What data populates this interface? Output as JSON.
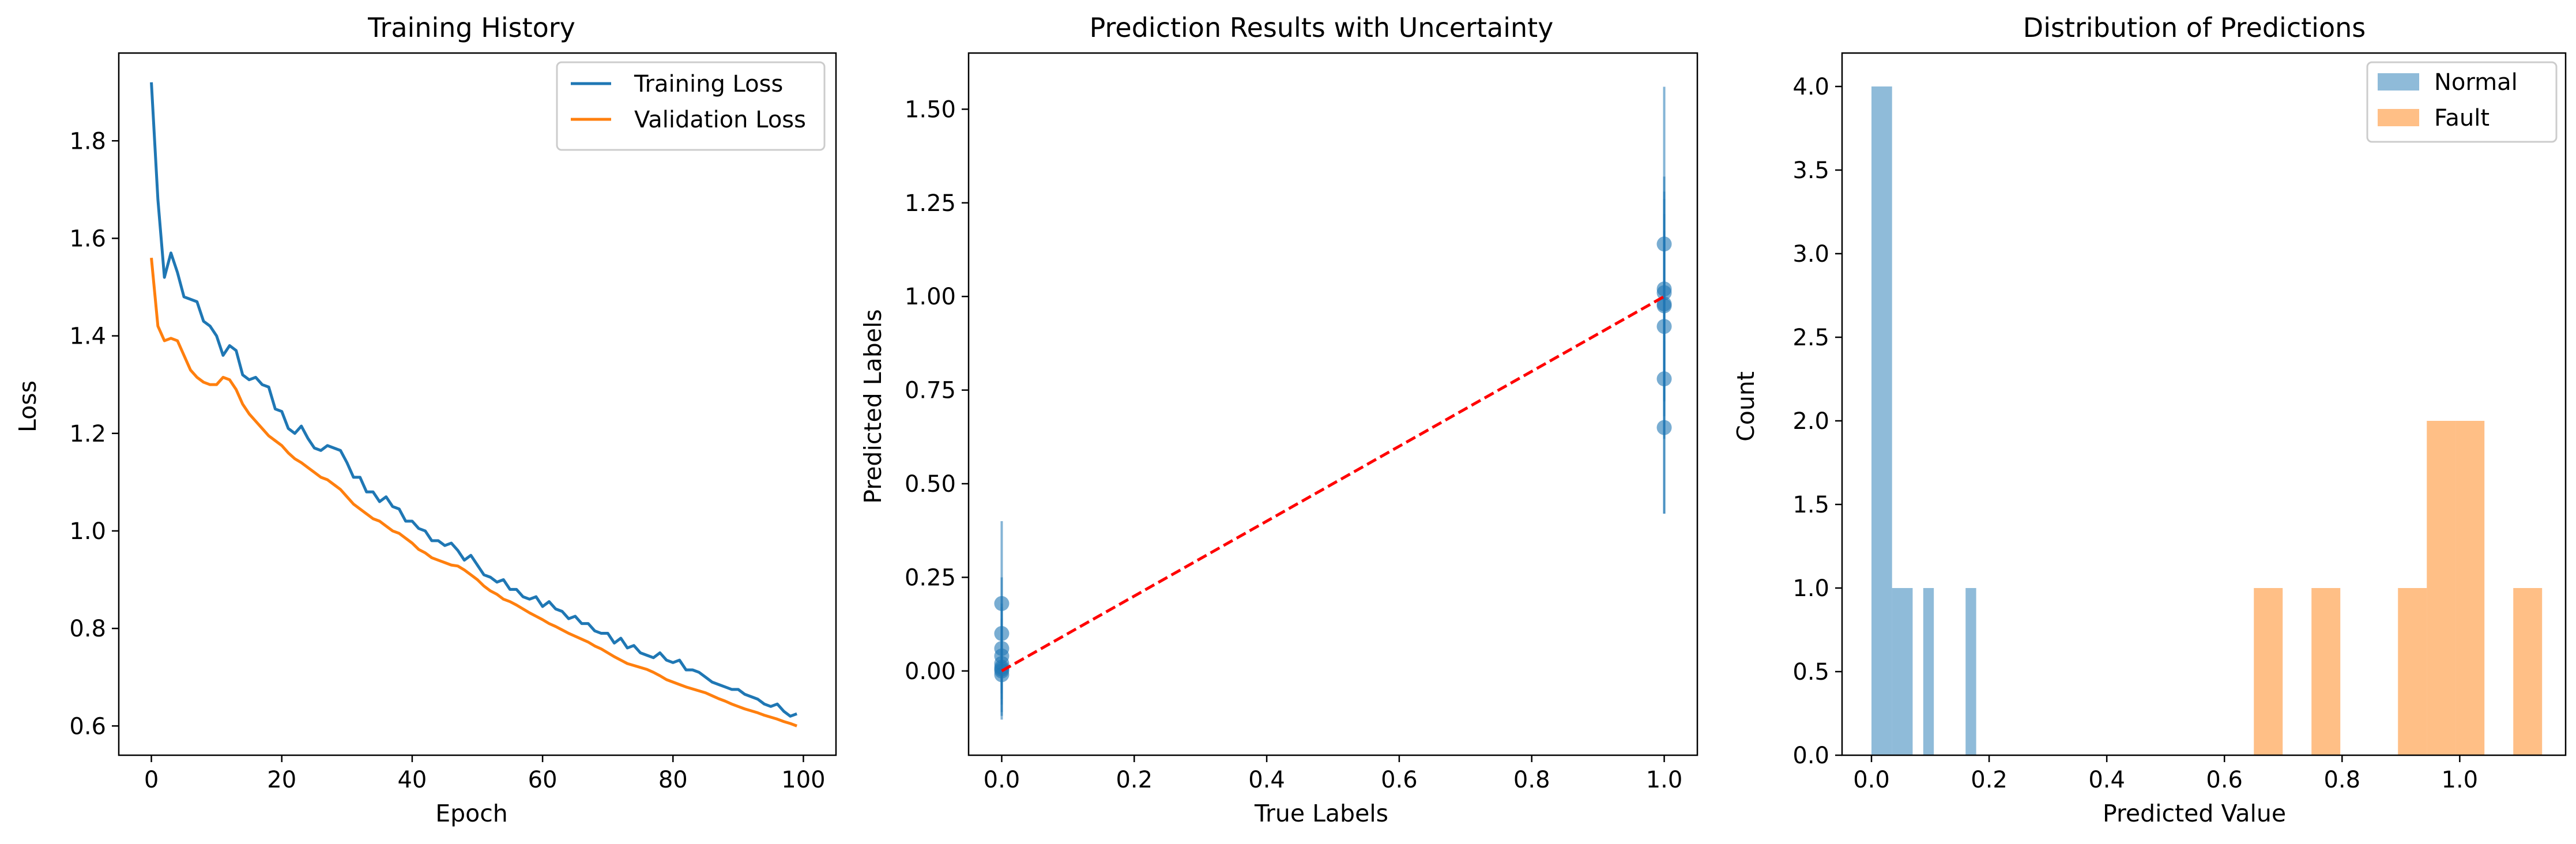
{
  "colors": {
    "training": "#1f77b4",
    "validation": "#ff7f0e",
    "scatter": "#1f77b4",
    "reference_line": "#ff0000",
    "hist_normal": "#1f77b4",
    "hist_fault": "#ff7f0e"
  },
  "chart_data": [
    {
      "type": "line",
      "title": "Training History",
      "xlabel": "Epoch",
      "ylabel": "Loss",
      "xlim": [
        -5,
        105
      ],
      "ylim": [
        0.54,
        1.98
      ],
      "xticks": [
        0,
        20,
        40,
        60,
        80,
        100
      ],
      "yticks": [
        0.6,
        0.8,
        1.0,
        1.2,
        1.4,
        1.6,
        1.8
      ],
      "xtick_labels": [
        "0",
        "20",
        "40",
        "60",
        "80",
        "100"
      ],
      "ytick_labels": [
        "0.6",
        "0.8",
        "1.0",
        "1.2",
        "1.4",
        "1.6",
        "1.8"
      ],
      "grid": false,
      "legend": "upper right",
      "legend_labels": [
        "Training Loss",
        "Validation Loss"
      ],
      "series": [
        {
          "name": "Training Loss",
          "color": "#1f77b4",
          "x": [
            0,
            1,
            2,
            3,
            4,
            5,
            6,
            7,
            8,
            9,
            10,
            11,
            12,
            13,
            14,
            15,
            16,
            17,
            18,
            19,
            20,
            21,
            22,
            23,
            24,
            25,
            26,
            27,
            28,
            29,
            30,
            31,
            32,
            33,
            34,
            35,
            36,
            37,
            38,
            39,
            40,
            41,
            42,
            43,
            44,
            45,
            46,
            47,
            48,
            49,
            50,
            51,
            52,
            53,
            54,
            55,
            56,
            57,
            58,
            59,
            60,
            61,
            62,
            63,
            64,
            65,
            66,
            67,
            68,
            69,
            70,
            71,
            72,
            73,
            74,
            75,
            76,
            77,
            78,
            79,
            80,
            81,
            82,
            83,
            84,
            85,
            86,
            87,
            88,
            89,
            90,
            91,
            92,
            93,
            94,
            95,
            96,
            97,
            98,
            99
          ],
          "values": [
            1.92,
            1.68,
            1.52,
            1.57,
            1.53,
            1.48,
            1.475,
            1.47,
            1.43,
            1.42,
            1.4,
            1.36,
            1.38,
            1.37,
            1.32,
            1.31,
            1.315,
            1.3,
            1.295,
            1.25,
            1.245,
            1.21,
            1.2,
            1.215,
            1.19,
            1.17,
            1.165,
            1.175,
            1.17,
            1.165,
            1.14,
            1.11,
            1.11,
            1.08,
            1.08,
            1.06,
            1.07,
            1.05,
            1.045,
            1.02,
            1.02,
            1.005,
            1.0,
            0.98,
            0.98,
            0.97,
            0.975,
            0.96,
            0.94,
            0.95,
            0.93,
            0.91,
            0.905,
            0.895,
            0.9,
            0.88,
            0.88,
            0.865,
            0.86,
            0.865,
            0.845,
            0.855,
            0.84,
            0.835,
            0.82,
            0.825,
            0.81,
            0.81,
            0.795,
            0.79,
            0.79,
            0.77,
            0.78,
            0.76,
            0.765,
            0.75,
            0.745,
            0.74,
            0.75,
            0.735,
            0.73,
            0.735,
            0.715,
            0.715,
            0.71,
            0.7,
            0.69,
            0.685,
            0.68,
            0.675,
            0.675,
            0.665,
            0.66,
            0.655,
            0.645,
            0.64,
            0.645,
            0.63,
            0.62,
            0.625
          ]
        },
        {
          "name": "Validation Loss",
          "color": "#ff7f0e",
          "x": [
            0,
            1,
            2,
            3,
            4,
            5,
            6,
            7,
            8,
            9,
            10,
            11,
            12,
            13,
            14,
            15,
            16,
            17,
            18,
            19,
            20,
            21,
            22,
            23,
            24,
            25,
            26,
            27,
            28,
            29,
            30,
            31,
            32,
            33,
            34,
            35,
            36,
            37,
            38,
            39,
            40,
            41,
            42,
            43,
            44,
            45,
            46,
            47,
            48,
            49,
            50,
            51,
            52,
            53,
            54,
            55,
            56,
            57,
            58,
            59,
            60,
            61,
            62,
            63,
            64,
            65,
            66,
            67,
            68,
            69,
            70,
            71,
            72,
            73,
            74,
            75,
            76,
            77,
            78,
            79,
            80,
            81,
            82,
            83,
            84,
            85,
            86,
            87,
            88,
            89,
            90,
            91,
            92,
            93,
            94,
            95,
            96,
            97,
            98,
            99
          ],
          "values": [
            1.56,
            1.42,
            1.39,
            1.395,
            1.39,
            1.36,
            1.33,
            1.315,
            1.305,
            1.3,
            1.3,
            1.315,
            1.31,
            1.29,
            1.26,
            1.24,
            1.225,
            1.21,
            1.195,
            1.185,
            1.175,
            1.16,
            1.148,
            1.14,
            1.13,
            1.12,
            1.11,
            1.105,
            1.095,
            1.085,
            1.07,
            1.055,
            1.045,
            1.035,
            1.025,
            1.02,
            1.01,
            1.0,
            0.995,
            0.985,
            0.975,
            0.962,
            0.955,
            0.945,
            0.94,
            0.935,
            0.93,
            0.928,
            0.92,
            0.91,
            0.9,
            0.887,
            0.877,
            0.87,
            0.86,
            0.855,
            0.848,
            0.84,
            0.832,
            0.825,
            0.818,
            0.81,
            0.804,
            0.797,
            0.79,
            0.784,
            0.778,
            0.772,
            0.764,
            0.758,
            0.75,
            0.742,
            0.735,
            0.728,
            0.724,
            0.72,
            0.716,
            0.71,
            0.703,
            0.695,
            0.69,
            0.685,
            0.68,
            0.676,
            0.672,
            0.668,
            0.662,
            0.656,
            0.651,
            0.645,
            0.64,
            0.635,
            0.631,
            0.627,
            0.622,
            0.618,
            0.614,
            0.609,
            0.605,
            0.6
          ]
        }
      ]
    },
    {
      "type": "scatter",
      "title": "Prediction Results with Uncertainty",
      "xlabel": "True Labels",
      "ylabel": "Predicted Labels",
      "xlim": [
        -0.05,
        1.05
      ],
      "ylim": [
        -0.225,
        1.65
      ],
      "xticks": [
        0,
        0.2,
        0.4,
        0.6,
        0.8,
        1.0
      ],
      "yticks": [
        0,
        0.25,
        0.5,
        0.75,
        1.0,
        1.25,
        1.5
      ],
      "xtick_labels": [
        "0.0",
        "0.2",
        "0.4",
        "0.6",
        "0.8",
        "1.0"
      ],
      "ytick_labels": [
        "0.00",
        "0.25",
        "0.50",
        "0.75",
        "1.00",
        "1.25",
        "1.50"
      ],
      "grid": false,
      "points": [
        {
          "x": 0,
          "y": 0.18,
          "err": 0.22
        },
        {
          "x": 0,
          "y": 0.1,
          "err": 0.15
        },
        {
          "x": 0,
          "y": 0.06,
          "err": 0.12
        },
        {
          "x": 0,
          "y": 0.04,
          "err": 0.1
        },
        {
          "x": 0,
          "y": 0.02,
          "err": 0.15
        },
        {
          "x": 0,
          "y": 0.01,
          "err": 0.1
        },
        {
          "x": 0,
          "y": 0.005,
          "err": 0.08
        },
        {
          "x": 0,
          "y": 0.0,
          "err": 0.12
        },
        {
          "x": 0,
          "y": -0.01,
          "err": 0.1
        },
        {
          "x": 1,
          "y": 1.14,
          "err": 0.42
        },
        {
          "x": 1,
          "y": 1.02,
          "err": 0.3
        },
        {
          "x": 1,
          "y": 1.01,
          "err": 0.25
        },
        {
          "x": 1,
          "y": 0.98,
          "err": 0.3
        },
        {
          "x": 1,
          "y": 0.975,
          "err": 0.2
        },
        {
          "x": 1,
          "y": 0.92,
          "err": 0.3
        },
        {
          "x": 1,
          "y": 0.78,
          "err": 0.36
        },
        {
          "x": 1,
          "y": 0.65,
          "err": 0.23
        }
      ],
      "reference_line": {
        "x": [
          0,
          1
        ],
        "y": [
          0,
          1
        ],
        "style": "dashed",
        "color": "#ff0000"
      }
    },
    {
      "type": "bar",
      "title": "Distribution of Predictions",
      "xlabel": "Predicted Value",
      "ylabel": "Count",
      "xlim": [
        -0.05,
        1.18
      ],
      "ylim": [
        0,
        4.2
      ],
      "xticks": [
        0,
        0.2,
        0.4,
        0.6,
        0.8,
        1.0
      ],
      "yticks": [
        0,
        0.5,
        1.0,
        1.5,
        2.0,
        2.5,
        3.0,
        3.5,
        4.0
      ],
      "xtick_labels": [
        "0.0",
        "0.2",
        "0.4",
        "0.6",
        "0.8",
        "1.0"
      ],
      "ytick_labels": [
        "0.0",
        "0.5",
        "1.0",
        "1.5",
        "2.0",
        "2.5",
        "3.0",
        "3.5",
        "4.0"
      ],
      "grid": false,
      "legend": "upper right",
      "legend_labels": [
        "Normal",
        "Fault"
      ],
      "series": [
        {
          "name": "Normal",
          "color": "#1f77b4",
          "bins": [
            {
              "x0": 0.0,
              "x1": 0.035,
              "count": 4
            },
            {
              "x0": 0.035,
              "x1": 0.07,
              "count": 1
            },
            {
              "x0": 0.088,
              "x1": 0.106,
              "count": 1
            },
            {
              "x0": 0.16,
              "x1": 0.178,
              "count": 1
            }
          ]
        },
        {
          "name": "Fault",
          "color": "#ff7f0e",
          "bins": [
            {
              "x0": 0.65,
              "x1": 0.699,
              "count": 1
            },
            {
              "x0": 0.748,
              "x1": 0.797,
              "count": 1
            },
            {
              "x0": 0.895,
              "x1": 0.944,
              "count": 1
            },
            {
              "x0": 0.944,
              "x1": 0.993,
              "count": 2
            },
            {
              "x0": 0.993,
              "x1": 1.042,
              "count": 2
            },
            {
              "x0": 1.091,
              "x1": 1.14,
              "count": 1
            }
          ]
        }
      ]
    }
  ]
}
